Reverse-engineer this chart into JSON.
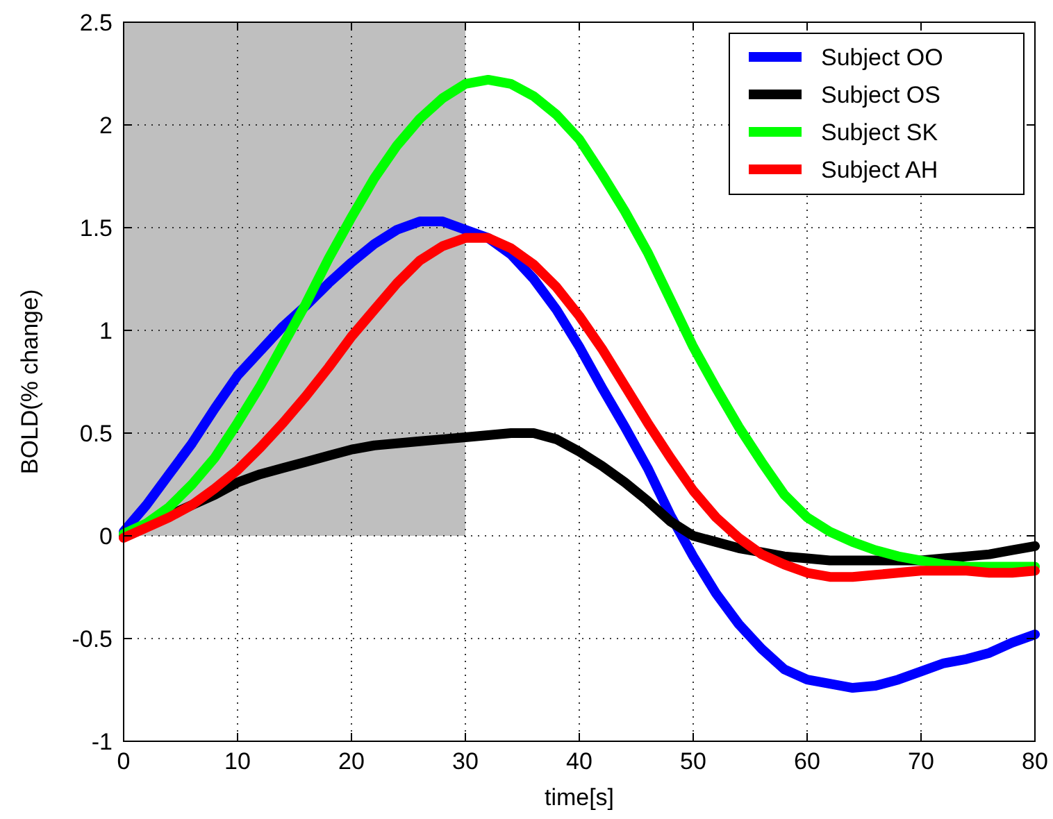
{
  "chart_data": {
    "type": "line",
    "xlabel": "time[s]",
    "ylabel": "BOLD(% change)",
    "x": [
      0,
      2,
      4,
      6,
      8,
      10,
      12,
      14,
      16,
      18,
      20,
      22,
      24,
      26,
      28,
      30,
      32,
      34,
      36,
      38,
      40,
      42,
      44,
      46,
      48,
      50,
      52,
      54,
      56,
      58,
      60,
      62,
      64,
      66,
      68,
      70,
      72,
      74,
      76,
      78,
      80
    ],
    "xlim": [
      0,
      80
    ],
    "xticks": [
      0,
      10,
      20,
      30,
      40,
      50,
      60,
      70,
      80
    ],
    "ylim": [
      -1,
      2.5
    ],
    "yticks": [
      -1,
      -0.5,
      0,
      0.5,
      1,
      1.5,
      2,
      2.5
    ],
    "grid": true,
    "legend": "top right",
    "line_style": "solid",
    "series": [
      {
        "type": "area",
        "color": "#bfbfbf",
        "x": [
          0,
          30
        ],
        "values": [
          2.5,
          2.5
        ]
      },
      {
        "name": "Subject OO",
        "color": "#0000ff",
        "values": [
          0.02,
          0.15,
          0.3,
          0.45,
          0.62,
          0.78,
          0.9,
          1.02,
          1.12,
          1.23,
          1.33,
          1.42,
          1.49,
          1.53,
          1.53,
          1.49,
          1.45,
          1.37,
          1.25,
          1.1,
          0.92,
          0.72,
          0.53,
          0.33,
          0.1,
          -0.1,
          -0.28,
          -0.43,
          -0.55,
          -0.65,
          -0.7,
          -0.72,
          -0.74,
          -0.73,
          -0.7,
          -0.66,
          -0.62,
          -0.6,
          -0.57,
          -0.52,
          -0.48
        ]
      },
      {
        "name": "Subject OS",
        "color": "#000000",
        "values": [
          0,
          null,
          0.1,
          0.15,
          0.2,
          0.26,
          0.3,
          0.33,
          0.36,
          0.39,
          0.42,
          0.44,
          0.45,
          0.46,
          0.47,
          0.48,
          0.49,
          0.5,
          0.5,
          0.47,
          0.41,
          0.34,
          0.26,
          0.17,
          0.07,
          0,
          -0.03,
          -0.06,
          -0.08,
          -0.1,
          -0.11,
          -0.12,
          -0.12,
          -0.12,
          -0.12,
          -0.12,
          -0.11,
          -0.1,
          -0.09,
          -0.07,
          -0.05
        ]
      },
      {
        "name": "Subject SK",
        "color": "#00ff00",
        "values": [
          0.01,
          0.06,
          0.14,
          0.25,
          0.38,
          0.55,
          0.73,
          0.93,
          1.13,
          1.35,
          1.55,
          1.74,
          1.9,
          2.03,
          2.13,
          2.2,
          2.22,
          2.2,
          2.14,
          2.05,
          1.93,
          1.76,
          1.58,
          1.38,
          1.15,
          0.92,
          0.72,
          0.53,
          0.36,
          0.2,
          0.09,
          0.02,
          -0.03,
          -0.07,
          -0.1,
          -0.12,
          -0.14,
          -0.15,
          -0.15,
          -0.15,
          -0.15
        ]
      },
      {
        "name": "Subject AH",
        "color": "#ff0000",
        "values": [
          -0.01,
          0.04,
          0.09,
          0.15,
          0.23,
          0.32,
          0.43,
          0.55,
          0.68,
          0.82,
          0.97,
          1.1,
          1.23,
          1.34,
          1.41,
          1.45,
          1.45,
          1.4,
          1.32,
          1.21,
          1.07,
          0.91,
          0.73,
          0.55,
          0.38,
          0.22,
          0.09,
          -0.01,
          -0.09,
          -0.14,
          -0.18,
          -0.2,
          -0.2,
          -0.19,
          -0.18,
          -0.17,
          -0.17,
          -0.17,
          -0.18,
          -0.18,
          -0.17
        ]
      }
    ]
  }
}
